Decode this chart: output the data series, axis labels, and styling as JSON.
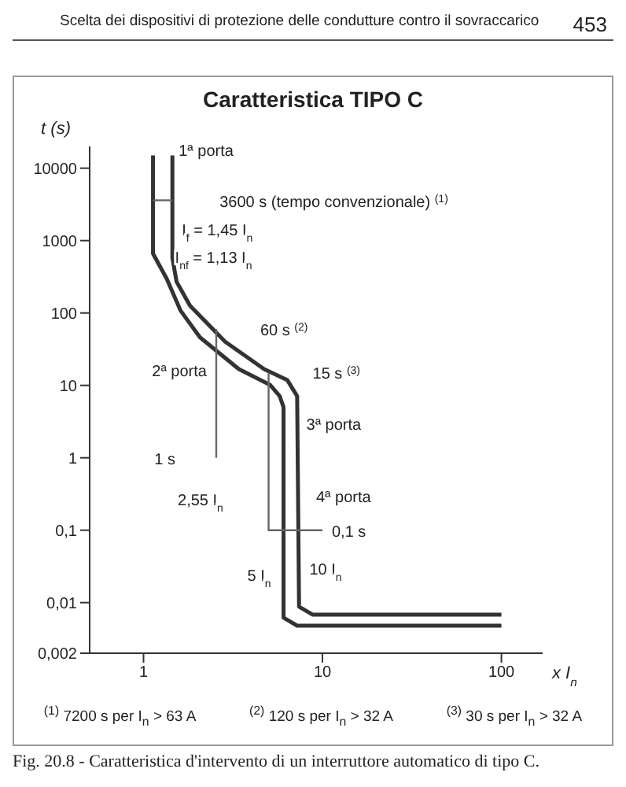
{
  "chart_data": {
    "type": "line",
    "title": "Caratteristica TIPO C",
    "xlabel": "x I$_{n}$",
    "ylabel": "t (s)",
    "log": "xy",
    "grid": false,
    "marker": "none",
    "line_style": "solid",
    "xlim": [
      0.5,
      170
    ],
    "xticks": [
      1,
      10,
      100
    ],
    "ylim": [
      0.002,
      20000
    ],
    "yticks": [
      {
        "value": 0.002,
        "label": "0,002"
      },
      {
        "value": 0.01,
        "label": "0,01"
      },
      {
        "value": 0.1,
        "label": "0,1"
      },
      1,
      10,
      100,
      1000,
      10000
    ],
    "series": [
      {
        "color": "#333333",
        "x": [
          1.13,
          1.13,
          1.35,
          1.61,
          2.07,
          3.41,
          5.09,
          5.77,
          6.06,
          6.06,
          7.22,
          100
        ],
        "values": [
          15000,
          660,
          295,
          108,
          46,
          16.8,
          10.2,
          7.1,
          5,
          0.0062,
          0.0048,
          0.0048
        ]
      },
      {
        "color": "#333333",
        "x": [
          1.45,
          1.45,
          1.53,
          1.82,
          2.86,
          4.72,
          6.37,
          7.22,
          7.4,
          8.83,
          100
        ],
        "values": [
          15000,
          575,
          270,
          126,
          40,
          16.8,
          11.8,
          7.1,
          0.0088,
          0.0068,
          0.0068
        ]
      },
      {
        "color": "#666666",
        "x": [
          1.13,
          1.45
        ],
        "values": [
          3600,
          3600
        ]
      },
      {
        "color": "#666666",
        "x": [
          2.55,
          2.55
        ],
        "values": [
          60,
          1
        ]
      },
      {
        "color": "#666666",
        "x": [
          5,
          5,
          10
        ],
        "values": [
          15,
          0.1,
          0.1
        ]
      }
    ],
    "annotations": [
      {
        "text": "1ª porta",
        "x": 1.45,
        "y": 10000
      },
      {
        "text": "3600 s (tempo convenzionale) $^{(1)}$",
        "x": 1.45,
        "y": 3600
      },
      {
        "text": "I$_{f}$ = 1,45 I$_{n}$",
        "x": 1.45,
        "y": 3600
      },
      {
        "text": "I$_{nf}$ = 1,13 I$_{n}$",
        "x": 1.13,
        "y": 1000
      },
      {
        "text": "60 s $^{(2)}$",
        "x": 2.55,
        "y": 60
      },
      {
        "text": "15 s $^{(3)}$",
        "x": 5,
        "y": 15
      },
      {
        "text": "2ª porta",
        "x": 2.55,
        "y": 10
      },
      {
        "text": "3ª porta",
        "x": 5,
        "y": 2
      },
      {
        "text": "1 s",
        "x": 2.55,
        "y": 1
      },
      {
        "text": "2,55 I$_{n}$",
        "x": 2.55,
        "y": 1
      },
      {
        "text": "4ª porta",
        "x": 10,
        "y": 0.1
      },
      {
        "text": "0,1 s",
        "x": 10,
        "y": 0.1
      },
      {
        "text": "5 I$_{n}$",
        "x": 5,
        "y": 0.1
      },
      {
        "text": "10 I$_{n}$",
        "x": 10,
        "y": 0.1
      },
      "Scelta dei dispositivi di protezione delle condutture contro il sovraccarico",
      "453",
      "$^{(1)}$ 7200 s per I$_{n}$ > 63 A",
      "$^{(2)}$ 120 s per I$_{n}$ > 32 A",
      "$^{(3)}$ 30 s per I$_{n}$ > 32 A",
      "Fig. 20.8 - Caratteristica d'intervento di un interruttore automatico di tipo C."
    ]
  }
}
